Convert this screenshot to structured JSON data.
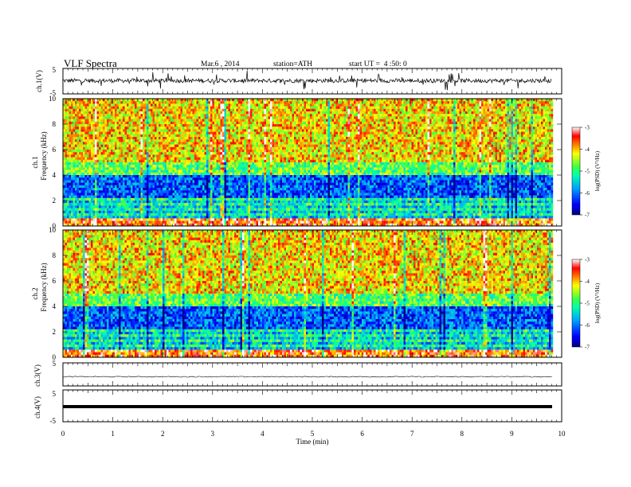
{
  "header": {
    "title": "VLF Spectra",
    "date": "Mar.6 , 2014",
    "station": "station=ATH",
    "start_time": "start UT =  4 :50: 0"
  },
  "chart_data": [
    {
      "type": "line",
      "panel": "ch1-waveform",
      "ylabel": "ch.1(V)",
      "ylim": [
        -5,
        5
      ],
      "yticks": [
        "5",
        "-5"
      ],
      "xlim": [
        0,
        10
      ]
    },
    {
      "type": "heatmap",
      "panel": "ch1-spectrogram",
      "ylabel_channel": "ch.1",
      "ylabel": "Frequency (kHz)",
      "ylim": [
        0,
        10
      ],
      "yticks": [
        "0",
        "2",
        "4",
        "6",
        "8",
        "10"
      ],
      "xlim": [
        0,
        10
      ],
      "data_end_min": 9.8,
      "colorbar": {
        "label": "log(PSD) (V²/Hz)",
        "range": [
          -7,
          -3
        ],
        "ticks": [
          "-3",
          "-4",
          "-5",
          "-6",
          "-7"
        ]
      }
    },
    {
      "type": "heatmap",
      "panel": "ch2-spectrogram",
      "ylabel_channel": "ch.2",
      "ylabel": "Frequency (kHz)",
      "ylim": [
        0,
        10
      ],
      "yticks": [
        "0",
        "2",
        "4",
        "6",
        "8",
        "10"
      ],
      "xlim": [
        0,
        10
      ],
      "data_end_min": 9.8,
      "colorbar": {
        "label": "log(PSD) (V²/Hz)",
        "range": [
          -7,
          -3
        ],
        "ticks": [
          "-3",
          "-4",
          "-5",
          "-6",
          "-7"
        ]
      }
    },
    {
      "type": "line",
      "panel": "ch3-waveform",
      "ylabel": "ch.3(V)",
      "ylim": [
        -5,
        5
      ],
      "yticks": [
        "5"
      ],
      "xlim": [
        0,
        10
      ]
    },
    {
      "type": "line",
      "panel": "ch4-waveform",
      "ylabel": "ch.4(V)",
      "ylim": [
        -5,
        5
      ],
      "yticks": [
        "5",
        "-5"
      ],
      "xlim": [
        0,
        10
      ],
      "xlabel": "Time (min)",
      "xticks": [
        "0",
        "1",
        "2",
        "3",
        "4",
        "5",
        "6",
        "7",
        "8",
        "9",
        "10"
      ]
    }
  ]
}
